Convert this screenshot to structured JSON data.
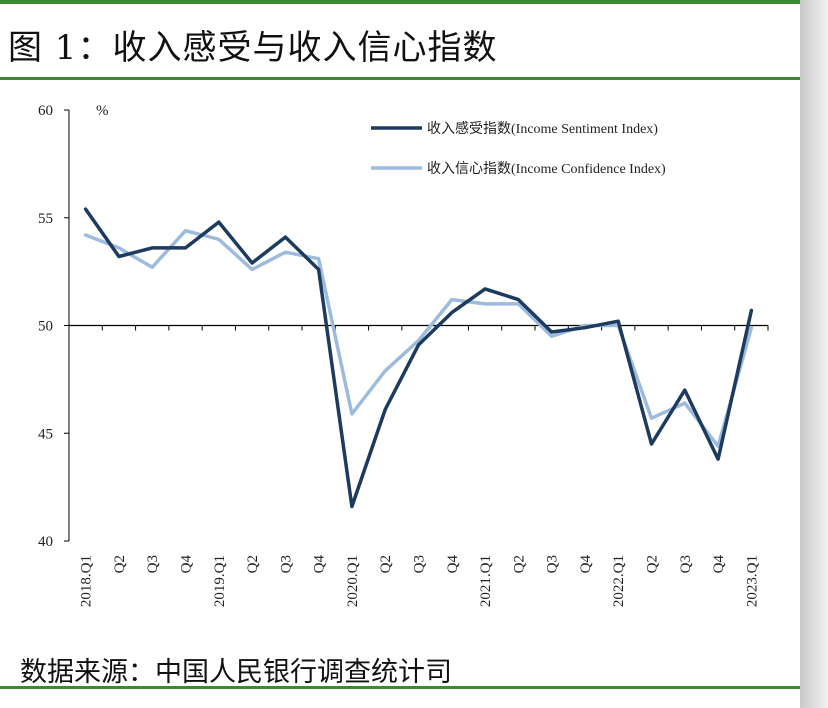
{
  "figure": {
    "title": "图 1：收入感受与收入信心指数",
    "source": "数据来源：中国人民银行调查统计司"
  },
  "colors": {
    "sentiment": "#1c3b5e",
    "confidence": "#9dbbdc",
    "rule": "#3a8a2f"
  },
  "chart_data": {
    "type": "line",
    "unit": "%",
    "categories": [
      "2018.Q1",
      "Q2",
      "Q3",
      "Q4",
      "2019.Q1",
      "Q2",
      "Q3",
      "Q4",
      "2020.Q1",
      "Q2",
      "Q3",
      "Q4",
      "2021.Q1",
      "Q2",
      "Q3",
      "Q4",
      "2022.Q1",
      "Q2",
      "Q3",
      "Q4",
      "2023.Q1"
    ],
    "ylim": [
      40,
      60
    ],
    "yticks": [
      40,
      45,
      50,
      55,
      60
    ],
    "reference_y": 50,
    "legend_position": "top-right",
    "series": [
      {
        "name": "收入感受指数(Income Sentiment Index)",
        "color": "#1c3b5e",
        "values": [
          55.4,
          53.2,
          53.6,
          53.6,
          54.8,
          52.9,
          54.1,
          52.6,
          41.6,
          46.1,
          49.1,
          50.6,
          51.7,
          51.2,
          49.7,
          49.9,
          50.2,
          44.5,
          47.0,
          43.8,
          50.7
        ]
      },
      {
        "name": "收入信心指数(Income Confidence Index)",
        "color": "#9dbbdc",
        "values": [
          54.2,
          53.6,
          52.7,
          54.4,
          54.0,
          52.6,
          53.4,
          53.1,
          45.9,
          47.9,
          49.3,
          51.2,
          51.0,
          51.0,
          49.5,
          50.0,
          50.0,
          45.7,
          46.4,
          44.4,
          49.9
        ]
      }
    ]
  }
}
